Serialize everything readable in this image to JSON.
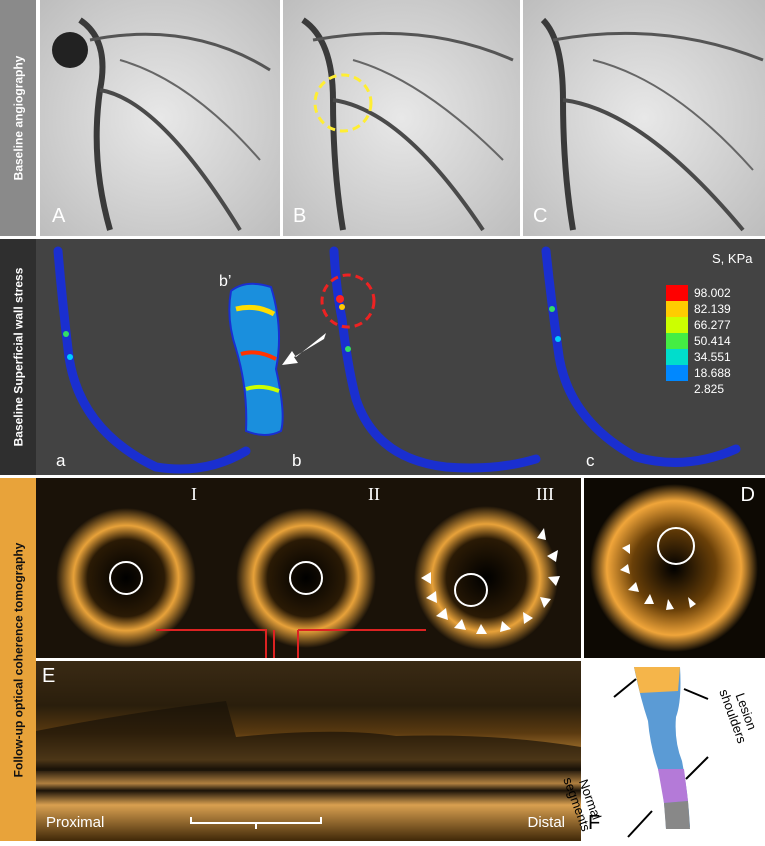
{
  "rows": {
    "angiography_label": "Baseline angiography",
    "stress_label": "Baseline Superficial wall stress",
    "oct_label": "Follow-up optical coherence tomography"
  },
  "angiography_panels": [
    "A",
    "B",
    "C"
  ],
  "stress_panels": [
    "a",
    "b",
    "c"
  ],
  "inset_label": "b’",
  "legend": {
    "title": "S, KPa",
    "values": [
      "98.002",
      "82.139",
      "66.277",
      "50.414",
      "34.551",
      "18.688",
      "2.825"
    ],
    "colors": [
      "#ff0000",
      "#ffcc00",
      "#ccff00",
      "#44ee44",
      "#00ddcc",
      "#0088ff",
      "#0000ee"
    ]
  },
  "oct": {
    "cross_sections": [
      "I",
      "II",
      "III"
    ],
    "panel_d": "D",
    "panel_e": "E",
    "proximal": "Proximal",
    "distal": "Distal"
  },
  "model": {
    "panel_f": "F",
    "lesion": "Lesion shoulders",
    "normal": "Normal segments"
  },
  "colors": {
    "sidebar_gray": "#8a8a8a",
    "sidebar_dark": "#2f2f2f",
    "sidebar_orange": "#e8a33a",
    "stress_bg": "#434343",
    "highlight_yellow": "#ffee33",
    "highlight_red": "#ee2222"
  }
}
